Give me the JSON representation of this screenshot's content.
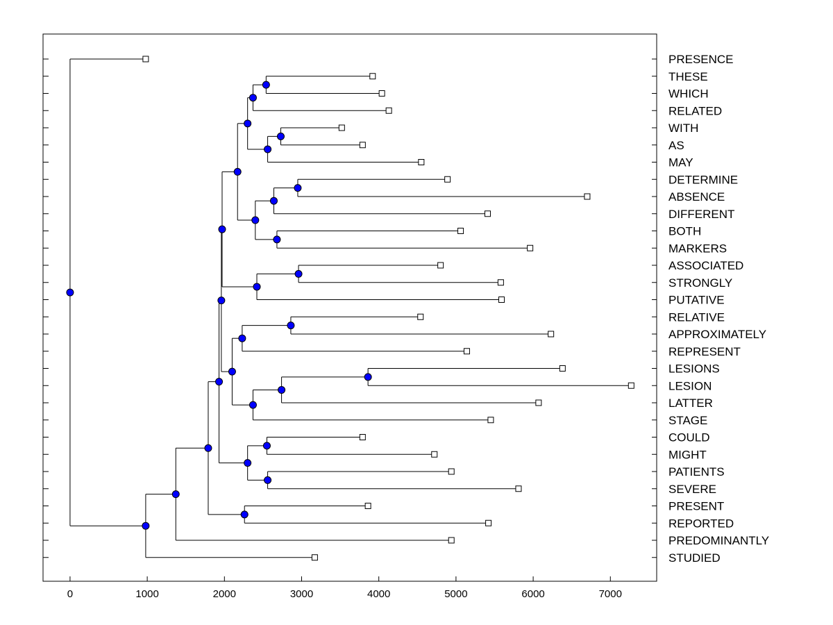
{
  "chart_data": {
    "type": "dendrogram",
    "orientation": "horizontal",
    "xlim": [
      -350,
      7600
    ],
    "x_ticks": [
      0,
      1000,
      2000,
      3000,
      4000,
      5000,
      6000,
      7000
    ],
    "tick_labels": [
      "0",
      "1000",
      "2000",
      "3000",
      "4000",
      "5000",
      "6000",
      "7000"
    ],
    "colors": {
      "node": "#0000ff",
      "leaf": "#ffffff",
      "line": "#000000"
    },
    "leaves": [
      {
        "label": "PRESENCE",
        "x": 980
      },
      {
        "label": "THESE",
        "x": 3920
      },
      {
        "label": "WHICH",
        "x": 4040
      },
      {
        "label": "RELATED",
        "x": 4130
      },
      {
        "label": "WITH",
        "x": 3520
      },
      {
        "label": "AS",
        "x": 3790
      },
      {
        "label": "MAY",
        "x": 4550
      },
      {
        "label": "DETERMINE",
        "x": 4890
      },
      {
        "label": "ABSENCE",
        "x": 6700
      },
      {
        "label": "DIFFERENT",
        "x": 5410
      },
      {
        "label": "BOTH",
        "x": 5060
      },
      {
        "label": "MARKERS",
        "x": 5960
      },
      {
        "label": "ASSOCIATED",
        "x": 4800
      },
      {
        "label": "STRONGLY",
        "x": 5580
      },
      {
        "label": "PUTATIVE",
        "x": 5590
      },
      {
        "label": "RELATIVE",
        "x": 4540
      },
      {
        "label": "APPROXIMATELY",
        "x": 6230
      },
      {
        "label": "REPRESENT",
        "x": 5140
      },
      {
        "label": "LESIONS",
        "x": 6380
      },
      {
        "label": "LESION",
        "x": 7270
      },
      {
        "label": "LATTER",
        "x": 6070
      },
      {
        "label": "STAGE",
        "x": 5450
      },
      {
        "label": "COULD",
        "x": 3790
      },
      {
        "label": "MIGHT",
        "x": 4720
      },
      {
        "label": "PATIENTS",
        "x": 4940
      },
      {
        "label": "SEVERE",
        "x": 5810
      },
      {
        "label": "PRESENT",
        "x": 3860
      },
      {
        "label": "REPORTED",
        "x": 5420
      },
      {
        "label": "PREDOMINANTLY",
        "x": 4940
      },
      {
        "label": "STUDIED",
        "x": 3170
      }
    ],
    "merges": [
      {
        "id": "n1",
        "x": 2540,
        "children": [
          "L1",
          "L2"
        ]
      },
      {
        "id": "n2",
        "x": 2370,
        "children": [
          "n1",
          "L3"
        ]
      },
      {
        "id": "n3",
        "x": 2730,
        "children": [
          "L4",
          "L5"
        ]
      },
      {
        "id": "n4",
        "x": 2560,
        "children": [
          "n3",
          "L6"
        ]
      },
      {
        "id": "n5",
        "x": 2300,
        "children": [
          "n2",
          "n4"
        ]
      },
      {
        "id": "n6",
        "x": 2950,
        "children": [
          "L7",
          "L8"
        ]
      },
      {
        "id": "n7",
        "x": 2640,
        "children": [
          "n6",
          "L9"
        ]
      },
      {
        "id": "n8",
        "x": 2680,
        "children": [
          "L10",
          "L11"
        ]
      },
      {
        "id": "n9",
        "x": 2400,
        "children": [
          "n7",
          "n8"
        ]
      },
      {
        "id": "n10",
        "x": 2170,
        "children": [
          "n5",
          "n9"
        ]
      },
      {
        "id": "n11",
        "x": 2960,
        "children": [
          "L12",
          "L13"
        ]
      },
      {
        "id": "n12",
        "x": 2420,
        "children": [
          "n11",
          "L14"
        ]
      },
      {
        "id": "n13",
        "x": 1970,
        "children": [
          "n10",
          "n12"
        ]
      },
      {
        "id": "n14",
        "x": 2860,
        "children": [
          "L15",
          "L16"
        ]
      },
      {
        "id": "n15",
        "x": 2230,
        "children": [
          "n14",
          "L17"
        ]
      },
      {
        "id": "n16",
        "x": 3860,
        "children": [
          "L18",
          "L19"
        ]
      },
      {
        "id": "n17",
        "x": 2740,
        "children": [
          "n16",
          "L20"
        ]
      },
      {
        "id": "n18",
        "x": 2370,
        "children": [
          "n17",
          "L21"
        ]
      },
      {
        "id": "n19",
        "x": 2100,
        "children": [
          "n15",
          "n18"
        ]
      },
      {
        "id": "n20",
        "x": 1960,
        "children": [
          "n13",
          "n19"
        ]
      },
      {
        "id": "n21",
        "x": 2550,
        "children": [
          "L22",
          "L23"
        ]
      },
      {
        "id": "n22",
        "x": 2560,
        "children": [
          "L24",
          "L25"
        ]
      },
      {
        "id": "n23",
        "x": 2300,
        "children": [
          "n21",
          "n22"
        ]
      },
      {
        "id": "n24",
        "x": 1930,
        "children": [
          "n20",
          "n23"
        ]
      },
      {
        "id": "n25",
        "x": 2260,
        "children": [
          "L26",
          "L27"
        ]
      },
      {
        "id": "n26",
        "x": 1790,
        "children": [
          "n24",
          "n25"
        ]
      },
      {
        "id": "n27",
        "x": 1370,
        "children": [
          "n26",
          "L28"
        ]
      },
      {
        "id": "n28",
        "x": 980,
        "children": [
          "n27",
          "L29"
        ]
      },
      {
        "id": "n29",
        "x": 0,
        "children": [
          "L0",
          "n28"
        ]
      }
    ]
  }
}
